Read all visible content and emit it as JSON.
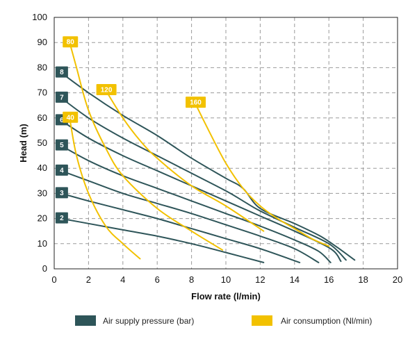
{
  "chart_data": {
    "type": "line",
    "xlabel": "Flow rate (l/min)",
    "ylabel": "Head (m)",
    "xlim": [
      0,
      20
    ],
    "ylim": [
      0,
      100
    ],
    "xticks": [
      0,
      2,
      4,
      6,
      8,
      10,
      12,
      14,
      16,
      18,
      20
    ],
    "yticks": [
      0,
      10,
      20,
      30,
      40,
      50,
      60,
      70,
      80,
      90,
      100
    ],
    "grid": true,
    "legend_position": "bottom",
    "colors": {
      "pressure": "#2e5559",
      "consumption": "#f2c100"
    },
    "legend": [
      {
        "label": "Air supply pressure (bar)",
        "color": "#2e5559"
      },
      {
        "label": "Air consumption (Nl/min)",
        "color": "#f2c100"
      }
    ],
    "series_groups": [
      {
        "group": "pressure",
        "series": [
          {
            "label": "2",
            "points": [
              [
                0.4,
                20
              ],
              [
                2,
                18
              ],
              [
                4,
                15.5
              ],
              [
                6,
                13
              ],
              [
                8,
                10
              ],
              [
                10,
                6.5
              ],
              [
                12.2,
                2.5
              ]
            ]
          },
          {
            "label": "3",
            "points": [
              [
                0.4,
                30
              ],
              [
                2,
                27
              ],
              [
                4,
                23.5
              ],
              [
                6,
                20
              ],
              [
                8,
                16
              ],
              [
                10,
                12
              ],
              [
                12,
                8
              ],
              [
                14.3,
                2.5
              ]
            ]
          },
          {
            "label": "4",
            "points": [
              [
                0.4,
                39
              ],
              [
                2,
                35
              ],
              [
                4,
                30
              ],
              [
                6,
                26
              ],
              [
                8,
                22
              ],
              [
                10,
                17.5
              ],
              [
                12,
                13
              ],
              [
                14,
                8
              ],
              [
                15.4,
                2.5
              ]
            ]
          },
          {
            "label": "5",
            "points": [
              [
                0.4,
                49
              ],
              [
                2,
                43
              ],
              [
                4,
                37
              ],
              [
                6,
                32
              ],
              [
                8,
                27
              ],
              [
                10,
                22
              ],
              [
                12,
                17
              ],
              [
                14,
                11.5
              ],
              [
                15.4,
                7
              ],
              [
                16.1,
                2.5
              ]
            ]
          },
          {
            "label": "6",
            "points": [
              [
                0.4,
                59
              ],
              [
                2,
                52
              ],
              [
                4,
                45
              ],
              [
                6,
                39
              ],
              [
                8,
                33
              ],
              [
                10,
                27
              ],
              [
                12,
                21
              ],
              [
                14,
                15
              ],
              [
                16.1,
                8
              ],
              [
                16.7,
                3
              ]
            ]
          },
          {
            "label": "7",
            "points": [
              [
                0.4,
                68
              ],
              [
                2,
                60
              ],
              [
                4,
                52
              ],
              [
                6,
                45
              ],
              [
                8,
                38
              ],
              [
                10,
                31
              ],
              [
                11,
                27
              ],
              [
                12,
                23
              ],
              [
                14,
                16.5
              ],
              [
                16,
                10
              ],
              [
                17,
                3.5
              ]
            ]
          },
          {
            "label": "8",
            "points": [
              [
                0.4,
                78
              ],
              [
                2,
                70
              ],
              [
                4,
                61
              ],
              [
                6,
                53
              ],
              [
                8,
                44
              ],
              [
                10,
                36
              ],
              [
                11,
                32
              ],
              [
                12,
                24
              ],
              [
                14,
                18
              ],
              [
                15.5,
                13
              ],
              [
                16.5,
                8.5
              ],
              [
                17.5,
                3.5
              ]
            ]
          }
        ]
      },
      {
        "group": "consumption",
        "series": [
          {
            "label": "40",
            "points": [
              [
                0.9,
                60
              ],
              [
                1.3,
                45
              ],
              [
                2,
                30
              ],
              [
                3,
                17
              ],
              [
                4,
                10
              ],
              [
                5,
                4
              ]
            ]
          },
          {
            "label": "80",
            "points": [
              [
                0.9,
                90
              ],
              [
                1.3,
                80
              ],
              [
                2,
                63
              ],
              [
                3,
                48
              ],
              [
                4,
                37
              ],
              [
                6,
                24
              ],
              [
                8,
                15
              ],
              [
                9.8,
                7.5
              ]
            ]
          },
          {
            "label": "120",
            "points": [
              [
                3,
                71
              ],
              [
                4,
                60
              ],
              [
                5,
                51
              ],
              [
                6,
                44
              ],
              [
                8,
                33
              ],
              [
                10,
                25
              ],
              [
                12.2,
                15
              ]
            ]
          },
          {
            "label": "160",
            "points": [
              [
                8.2,
                66
              ],
              [
                9,
                55
              ],
              [
                10,
                42
              ],
              [
                11,
                32
              ],
              [
                12,
                25
              ],
              [
                13,
                20
              ],
              [
                14,
                16
              ],
              [
                15,
                12
              ],
              [
                16,
                9
              ]
            ]
          }
        ]
      }
    ]
  }
}
